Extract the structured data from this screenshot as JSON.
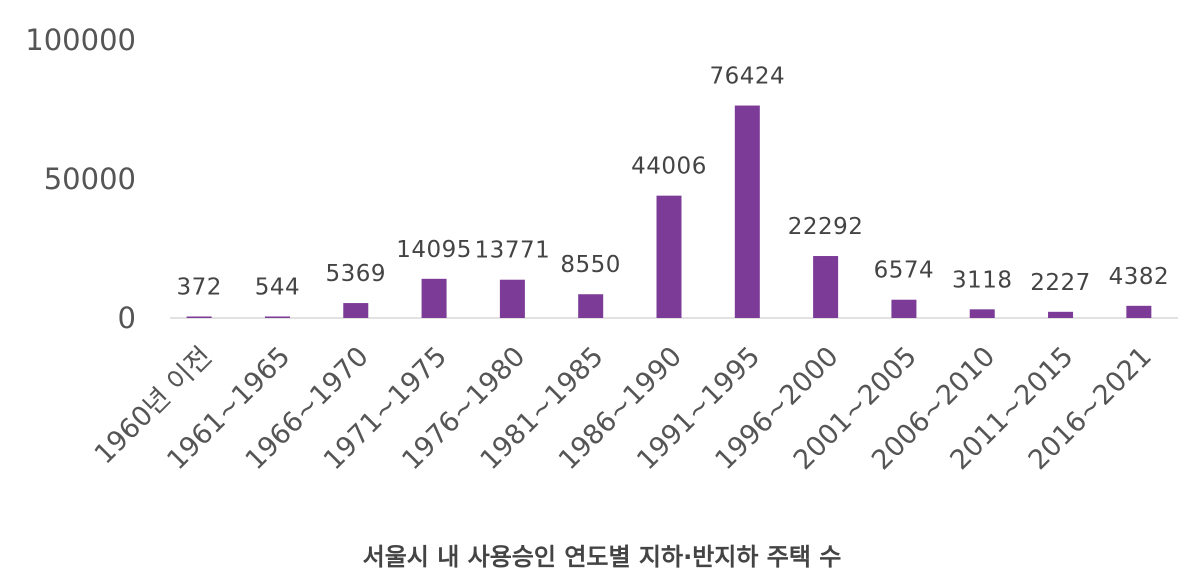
{
  "chart_data": {
    "type": "bar",
    "title": "서울시 내 사용승인 연도별 지하·반지하 주택 수",
    "xlabel": "",
    "ylabel": "",
    "categories": [
      "1960년 이전",
      "1961~1965",
      "1966~1970",
      "1971~1975",
      "1976~1980",
      "1981~1985",
      "1986~1990",
      "1991~1995",
      "1996~2000",
      "2001~2005",
      "2006~2010",
      "2011~2015",
      "2016~2021"
    ],
    "values": [
      372,
      544,
      5369,
      14095,
      13771,
      8550,
      44006,
      76424,
      22292,
      6574,
      3118,
      2227,
      4382
    ],
    "data_labels": [
      "372",
      "544",
      "5369",
      "14095",
      "13771",
      "8550",
      "44006",
      "76424",
      "22292",
      "6574",
      "3118",
      "2227",
      "4382"
    ],
    "ylim": [
      0,
      100000
    ],
    "yticks": [
      0,
      50000,
      100000
    ],
    "ytick_labels": [
      "0",
      "50000",
      "100000"
    ],
    "grid": false,
    "legend": "none",
    "bar_color": "#7b3b96"
  }
}
